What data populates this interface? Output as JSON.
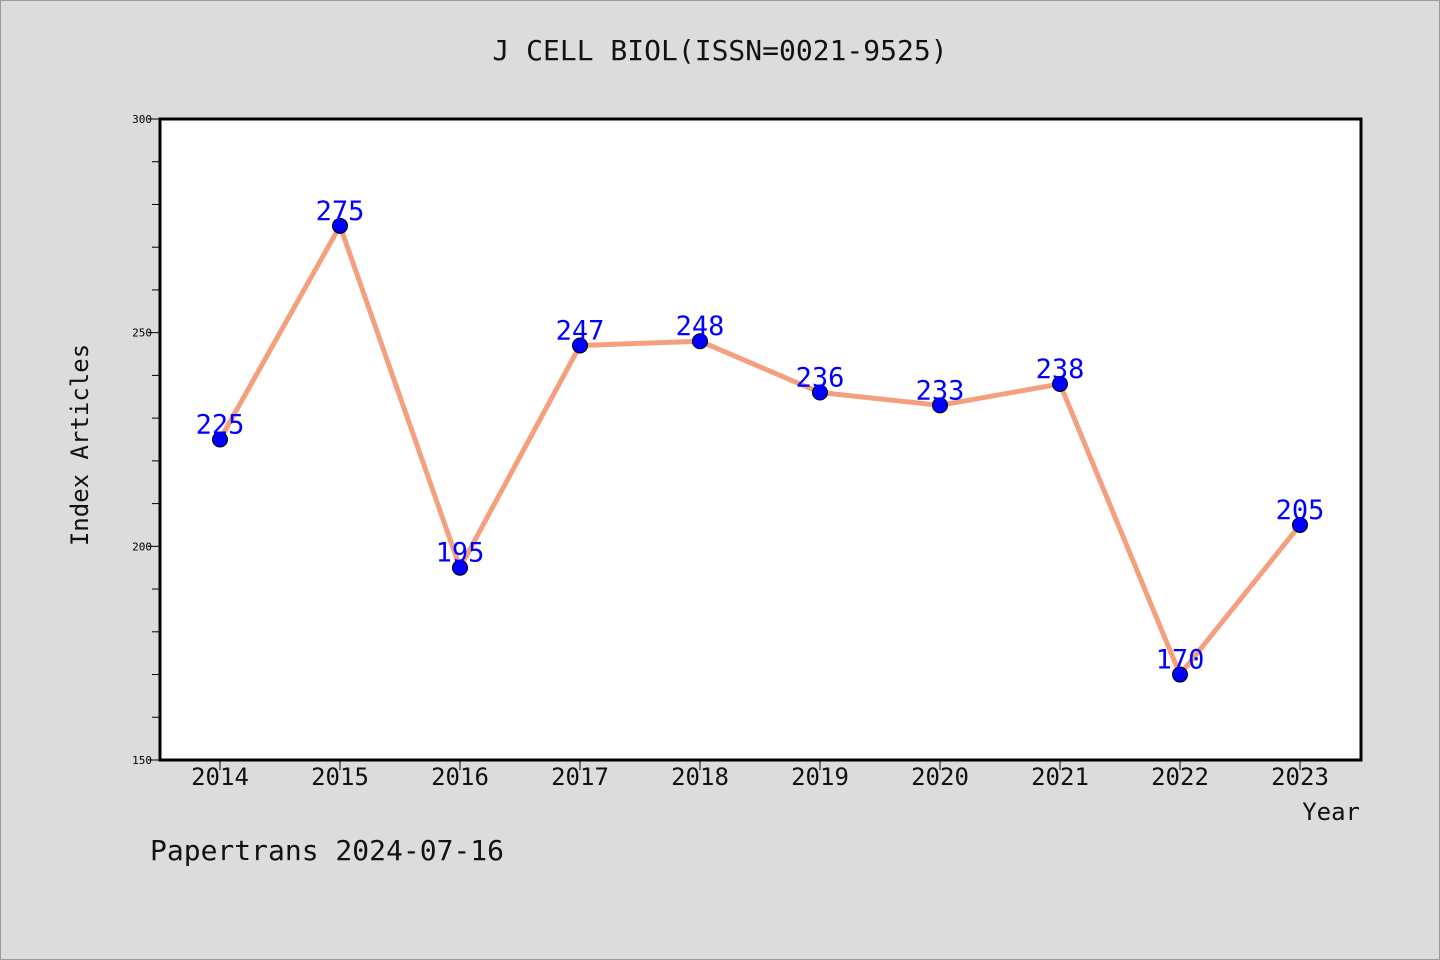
{
  "chart_data": {
    "type": "line",
    "title": "J CELL BIOL(ISSN=0021-9525)",
    "xlabel": "Year",
    "ylabel": "Index Articles",
    "categories": [
      "2014",
      "2015",
      "2016",
      "2017",
      "2018",
      "2019",
      "2020",
      "2021",
      "2022",
      "2023"
    ],
    "values": [
      225,
      275,
      195,
      247,
      248,
      236,
      233,
      238,
      170,
      205
    ],
    "data_labels": [
      "225",
      "275",
      "195",
      "247",
      "248",
      "236",
      "233",
      "238",
      "170",
      "205"
    ],
    "ylim": [
      150,
      300
    ],
    "yticks": [
      "150",
      "200",
      "250",
      "300"
    ],
    "grid": false,
    "colors": {
      "line": "#f4a07f",
      "marker": "#0000ff",
      "label": "#0000ff",
      "background": "#dcdcdc",
      "plot": "#ffffff"
    }
  },
  "footer": "Papertrans 2024-07-16"
}
